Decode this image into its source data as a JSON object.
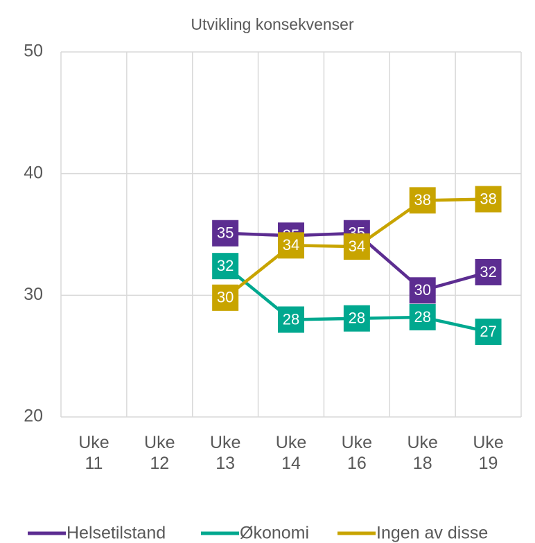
{
  "chart_data": {
    "type": "line",
    "title": "Utvikling konsekvenser",
    "categories": [
      "Uke 11",
      "Uke 12",
      "Uke 13",
      "Uke 14",
      "Uke 16",
      "Uke 18",
      "Uke 19"
    ],
    "series": [
      {
        "name": "Helsetilstand",
        "color": "#5c2d91",
        "values": [
          null,
          null,
          35.1,
          34.9,
          35.1,
          30.4,
          31.9
        ],
        "value_labels": [
          null,
          null,
          "35",
          "35",
          "35",
          "30",
          "32"
        ]
      },
      {
        "name": "Økonomi",
        "color": "#00a88f",
        "values": [
          null,
          null,
          32.4,
          28.0,
          28.1,
          28.2,
          27.0
        ],
        "value_labels": [
          null,
          null,
          "32",
          "28",
          "28",
          "28",
          "27"
        ]
      },
      {
        "name": "Ingen av disse",
        "color": "#c8a400",
        "values": [
          null,
          null,
          29.8,
          34.1,
          34.0,
          37.8,
          37.9
        ],
        "value_labels": [
          null,
          null,
          "30",
          "34",
          "34",
          "38",
          "38"
        ]
      }
    ],
    "ylim": [
      20,
      50
    ],
    "yticks": [
      20,
      30,
      40,
      50
    ],
    "grid": true,
    "legend": "bottom"
  }
}
